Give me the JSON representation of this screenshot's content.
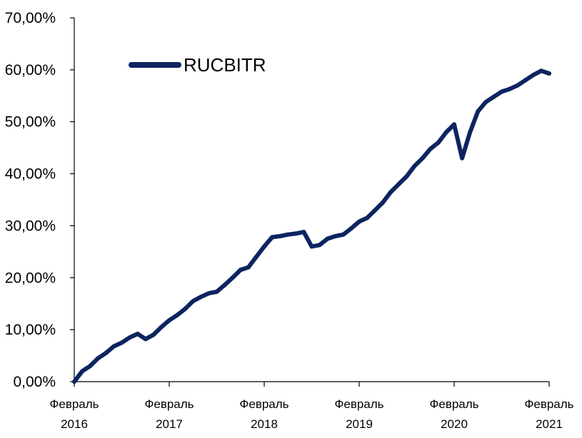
{
  "chart_data": {
    "type": "line",
    "title": "",
    "xlabel": "",
    "ylabel": "",
    "ylim": [
      0,
      70
    ],
    "yticks": [
      "0,00%",
      "10,00%",
      "20,00%",
      "30,00%",
      "40,00%",
      "50,00%",
      "60,00%",
      "70,00%"
    ],
    "xticks": [
      {
        "month": "Февраль",
        "year": "2016"
      },
      {
        "month": "Февраль",
        "year": "2017"
      },
      {
        "month": "Февраль",
        "year": "2018"
      },
      {
        "month": "Февраль",
        "year": "2019"
      },
      {
        "month": "Февраль",
        "year": "2020"
      },
      {
        "month": "Февраль",
        "year": "2021"
      }
    ],
    "grid": false,
    "legend_position": "top-left",
    "series": [
      {
        "name": "RUCBITR",
        "color": "#0d2460",
        "points": [
          [
            "2016-02",
            0.0
          ],
          [
            "2016-03",
            2.0
          ],
          [
            "2016-04",
            3.0
          ],
          [
            "2016-05",
            4.5
          ],
          [
            "2016-06",
            5.5
          ],
          [
            "2016-07",
            6.8
          ],
          [
            "2016-08",
            7.5
          ],
          [
            "2016-09",
            8.5
          ],
          [
            "2016-10",
            9.2
          ],
          [
            "2016-11",
            8.2
          ],
          [
            "2016-12",
            9.0
          ],
          [
            "2017-01",
            10.5
          ],
          [
            "2017-02",
            11.8
          ],
          [
            "2017-03",
            12.8
          ],
          [
            "2017-04",
            14.0
          ],
          [
            "2017-05",
            15.5
          ],
          [
            "2017-06",
            16.3
          ],
          [
            "2017-07",
            17.0
          ],
          [
            "2017-08",
            17.3
          ],
          [
            "2017-09",
            18.6
          ],
          [
            "2017-10",
            20.0
          ],
          [
            "2017-11",
            21.5
          ],
          [
            "2017-12",
            22.0
          ],
          [
            "2018-01",
            24.0
          ],
          [
            "2018-02",
            26.0
          ],
          [
            "2018-03",
            27.8
          ],
          [
            "2018-04",
            28.0
          ],
          [
            "2018-05",
            28.3
          ],
          [
            "2018-06",
            28.5
          ],
          [
            "2018-07",
            28.8
          ],
          [
            "2018-08",
            26.0
          ],
          [
            "2018-09",
            26.3
          ],
          [
            "2018-10",
            27.5
          ],
          [
            "2018-11",
            28.0
          ],
          [
            "2018-12",
            28.3
          ],
          [
            "2019-01",
            29.5
          ],
          [
            "2019-02",
            30.8
          ],
          [
            "2019-03",
            31.5
          ],
          [
            "2019-04",
            33.0
          ],
          [
            "2019-05",
            34.5
          ],
          [
            "2019-06",
            36.5
          ],
          [
            "2019-07",
            38.0
          ],
          [
            "2019-08",
            39.5
          ],
          [
            "2019-09",
            41.5
          ],
          [
            "2019-10",
            43.0
          ],
          [
            "2019-11",
            44.8
          ],
          [
            "2019-12",
            46.0
          ],
          [
            "2020-01",
            48.0
          ],
          [
            "2020-02",
            49.5
          ],
          [
            "2020-03",
            43.0
          ],
          [
            "2020-04",
            48.0
          ],
          [
            "2020-05",
            52.0
          ],
          [
            "2020-06",
            53.8
          ],
          [
            "2020-07",
            54.8
          ],
          [
            "2020-08",
            55.8
          ],
          [
            "2020-09",
            56.3
          ],
          [
            "2020-10",
            57.0
          ],
          [
            "2020-11",
            58.0
          ],
          [
            "2020-12",
            59.0
          ],
          [
            "2021-01",
            59.8
          ],
          [
            "2021-02",
            59.3
          ]
        ]
      }
    ]
  }
}
